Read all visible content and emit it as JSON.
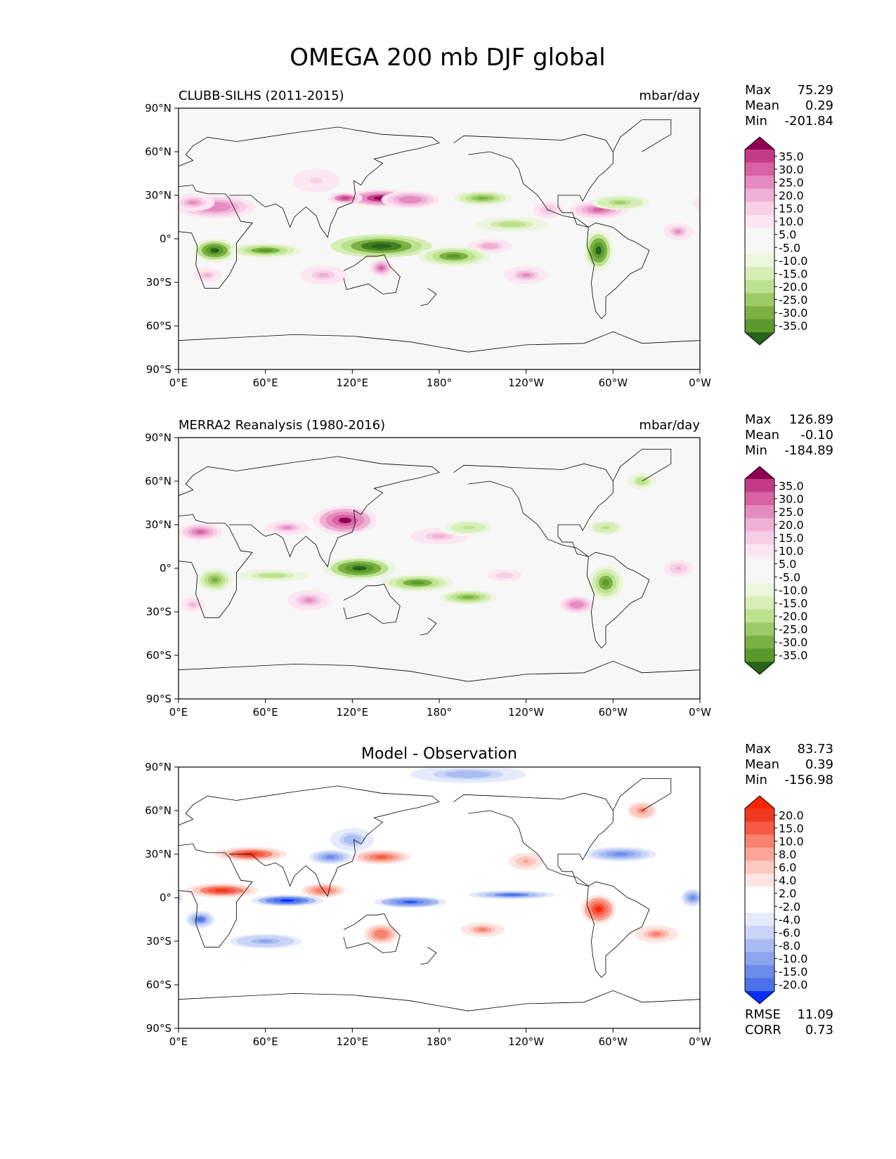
{
  "suptitle": "OMEGA 200 mb DJF global",
  "colors": {
    "piyg": [
      "#276419",
      "#3f7f20",
      "#5a9a2c",
      "#7bb142",
      "#9cca67",
      "#bde28f",
      "#d7eeb6",
      "#ecf5dd",
      "#f7f7f7",
      "#fbe6f1",
      "#f6cfe6",
      "#f0b1d6",
      "#e58bbf",
      "#d962a4",
      "#c23d86",
      "#8e0152"
    ],
    "diff": [
      "#0a2dff",
      "#2c55ef",
      "#4c72ea",
      "#6b8cea",
      "#8ba5ee",
      "#a9bdf2",
      "#c8d5f7",
      "#e5ebfb",
      "#ffffff",
      "#fde6e2",
      "#fbc9bf",
      "#f9a698",
      "#f7816f",
      "#f45a44",
      "#ef3921",
      "#ff2400"
    ]
  },
  "chart_data": [
    {
      "type": "heatmap",
      "panel": "test",
      "left_title": "CLUBB-SILHS (2011-2015)",
      "right_title": "mbar/day",
      "center_title": "",
      "stats": [
        {
          "label": "Max",
          "value": "75.29"
        },
        {
          "label": "Mean",
          "value": "0.29"
        },
        {
          "label": "Min",
          "value": "-201.84"
        }
      ],
      "extra_stats": [],
      "x_ticks": [
        "0°E",
        "60°E",
        "120°E",
        "180°",
        "120°W",
        "60°W",
        "0°W"
      ],
      "y_ticks": [
        "90°N",
        "60°N",
        "30°N",
        "0°",
        "30°S",
        "60°S",
        "90°S"
      ],
      "xlim": [
        0,
        360
      ],
      "ylim": [
        -90,
        90
      ],
      "colormap": "piyg",
      "colorbar_levels": [
        "35.0",
        "30.0",
        "25.0",
        "20.0",
        "15.0",
        "10.0",
        "5.0",
        "-5.0",
        "-10.0",
        "-15.0",
        "-20.0",
        "-25.0",
        "-30.0",
        "-35.0"
      ],
      "features": [
        {
          "lon": 25,
          "lat": 22,
          "v": 0.6,
          "rx": 28,
          "ry": 8
        },
        {
          "lon": 10,
          "lat": 25,
          "v": 0.5,
          "rx": 15,
          "ry": 6
        },
        {
          "lon": 140,
          "lat": 28,
          "v": 1.0,
          "rx": 25,
          "ry": 6
        },
        {
          "lon": 115,
          "lat": 28,
          "v": 0.85,
          "rx": 12,
          "ry": 4
        },
        {
          "lon": 160,
          "lat": 27,
          "v": 0.6,
          "rx": 20,
          "ry": 6
        },
        {
          "lon": 95,
          "lat": 40,
          "v": 0.25,
          "rx": 20,
          "ry": 10
        },
        {
          "lon": 100,
          "lat": -25,
          "v": 0.35,
          "rx": 20,
          "ry": 8
        },
        {
          "lon": 140,
          "lat": -20,
          "v": 0.7,
          "rx": 8,
          "ry": 6
        },
        {
          "lon": 20,
          "lat": -25,
          "v": 0.35,
          "rx": 12,
          "ry": 6
        },
        {
          "lon": 290,
          "lat": 20,
          "v": 0.7,
          "rx": 20,
          "ry": 6
        },
        {
          "lon": 255,
          "lat": 20,
          "v": 0.4,
          "rx": 10,
          "ry": 6
        },
        {
          "lon": 345,
          "lat": 5,
          "v": 0.5,
          "rx": 10,
          "ry": 6
        },
        {
          "lon": 240,
          "lat": -25,
          "v": 0.5,
          "rx": 15,
          "ry": 6
        },
        {
          "lon": 215,
          "lat": -5,
          "v": 0.45,
          "rx": 15,
          "ry": 5
        },
        {
          "lon": 25,
          "lat": -8,
          "v": -0.9,
          "rx": 15,
          "ry": 8
        },
        {
          "lon": 60,
          "lat": -8,
          "v": -0.7,
          "rx": 25,
          "ry": 5
        },
        {
          "lon": 140,
          "lat": -5,
          "v": -1.0,
          "rx": 35,
          "ry": 8
        },
        {
          "lon": 190,
          "lat": -12,
          "v": -0.7,
          "rx": 25,
          "ry": 7
        },
        {
          "lon": 290,
          "lat": -8,
          "v": -0.95,
          "rx": 10,
          "ry": 14
        },
        {
          "lon": 210,
          "lat": 28,
          "v": -0.6,
          "rx": 20,
          "ry": 5
        },
        {
          "lon": 305,
          "lat": 25,
          "v": -0.5,
          "rx": 20,
          "ry": 5
        },
        {
          "lon": 230,
          "lat": 10,
          "v": -0.4,
          "rx": 25,
          "ry": 5
        }
      ]
    },
    {
      "type": "heatmap",
      "panel": "reference",
      "left_title": "MERRA2 Reanalysis (1980-2016)",
      "right_title": "mbar/day",
      "center_title": "",
      "stats": [
        {
          "label": "Max",
          "value": "126.89"
        },
        {
          "label": "Mean",
          "value": "-0.10"
        },
        {
          "label": "Min",
          "value": "-184.89"
        }
      ],
      "extra_stats": [],
      "x_ticks": [
        "0°E",
        "60°E",
        "120°E",
        "180°",
        "120°W",
        "60°W",
        "0°W"
      ],
      "y_ticks": [
        "90°N",
        "60°N",
        "30°N",
        "0°",
        "30°S",
        "60°S",
        "90°S"
      ],
      "xlim": [
        0,
        360
      ],
      "ylim": [
        -90,
        90
      ],
      "colormap": "piyg",
      "colorbar_levels": [
        "35.0",
        "30.0",
        "25.0",
        "20.0",
        "15.0",
        "10.0",
        "5.0",
        "-5.0",
        "-10.0",
        "-15.0",
        "-20.0",
        "-25.0",
        "-30.0",
        "-35.0"
      ],
      "features": [
        {
          "lon": 15,
          "lat": 25,
          "v": 0.7,
          "rx": 15,
          "ry": 6
        },
        {
          "lon": 115,
          "lat": 33,
          "v": 0.9,
          "rx": 22,
          "ry": 10
        },
        {
          "lon": 75,
          "lat": 28,
          "v": 0.5,
          "rx": 15,
          "ry": 5
        },
        {
          "lon": 180,
          "lat": 22,
          "v": 0.35,
          "rx": 25,
          "ry": 7
        },
        {
          "lon": 90,
          "lat": -22,
          "v": 0.5,
          "rx": 15,
          "ry": 7
        },
        {
          "lon": 10,
          "lat": -25,
          "v": 0.35,
          "rx": 10,
          "ry": 6
        },
        {
          "lon": 275,
          "lat": -25,
          "v": 0.6,
          "rx": 12,
          "ry": 6
        },
        {
          "lon": 345,
          "lat": 0,
          "v": 0.4,
          "rx": 10,
          "ry": 6
        },
        {
          "lon": 225,
          "lat": -5,
          "v": 0.3,
          "rx": 15,
          "ry": 5
        },
        {
          "lon": 25,
          "lat": -8,
          "v": -0.6,
          "rx": 12,
          "ry": 8
        },
        {
          "lon": 125,
          "lat": 0,
          "v": -0.9,
          "rx": 25,
          "ry": 8
        },
        {
          "lon": 165,
          "lat": -10,
          "v": -0.7,
          "rx": 25,
          "ry": 6
        },
        {
          "lon": 200,
          "lat": -20,
          "v": -0.6,
          "rx": 20,
          "ry": 5
        },
        {
          "lon": 295,
          "lat": -10,
          "v": -0.7,
          "rx": 12,
          "ry": 12
        },
        {
          "lon": 200,
          "lat": 28,
          "v": -0.35,
          "rx": 20,
          "ry": 6
        },
        {
          "lon": 295,
          "lat": 28,
          "v": -0.35,
          "rx": 15,
          "ry": 6
        },
        {
          "lon": 320,
          "lat": 60,
          "v": -0.4,
          "rx": 10,
          "ry": 6
        },
        {
          "lon": 65,
          "lat": -5,
          "v": -0.4,
          "rx": 25,
          "ry": 4
        }
      ]
    },
    {
      "type": "heatmap",
      "panel": "difference",
      "left_title": "",
      "right_title": "",
      "center_title": "Model - Observation",
      "stats": [
        {
          "label": "Max",
          "value": "83.73"
        },
        {
          "label": "Mean",
          "value": "0.39"
        },
        {
          "label": "Min",
          "value": "-156.98"
        }
      ],
      "extra_stats": [
        {
          "label": "RMSE",
          "value": "11.09"
        },
        {
          "label": "CORR",
          "value": "0.73"
        }
      ],
      "x_ticks": [
        "0°E",
        "60°E",
        "120°E",
        "180°",
        "120°W",
        "60°W",
        "0°W"
      ],
      "y_ticks": [
        "90°N",
        "60°N",
        "30°N",
        "0°",
        "30°S",
        "60°S",
        "90°S"
      ],
      "xlim": [
        0,
        360
      ],
      "ylim": [
        -90,
        90
      ],
      "colormap": "diff",
      "colorbar_levels": [
        "20.0",
        "15.0",
        "10.0",
        "8.0",
        "6.0",
        "4.0",
        "2.0",
        "-2.0",
        "-4.0",
        "-6.0",
        "-8.0",
        "-10.0",
        "-15.0",
        "-20.0"
      ],
      "features": [
        {
          "lon": 50,
          "lat": 30,
          "v": 0.8,
          "rx": 25,
          "ry": 5
        },
        {
          "lon": 140,
          "lat": 28,
          "v": 0.7,
          "rx": 20,
          "ry": 5
        },
        {
          "lon": 30,
          "lat": 5,
          "v": 0.85,
          "rx": 25,
          "ry": 5
        },
        {
          "lon": 290,
          "lat": -8,
          "v": 0.9,
          "rx": 12,
          "ry": 10
        },
        {
          "lon": 330,
          "lat": -25,
          "v": 0.5,
          "rx": 15,
          "ry": 6
        },
        {
          "lon": 140,
          "lat": -25,
          "v": 0.6,
          "rx": 12,
          "ry": 7
        },
        {
          "lon": 210,
          "lat": -22,
          "v": 0.5,
          "rx": 15,
          "ry": 5
        },
        {
          "lon": 320,
          "lat": 60,
          "v": 0.55,
          "rx": 10,
          "ry": 6
        },
        {
          "lon": 240,
          "lat": 25,
          "v": 0.4,
          "rx": 12,
          "ry": 6
        },
        {
          "lon": 100,
          "lat": 5,
          "v": 0.6,
          "rx": 15,
          "ry": 5
        },
        {
          "lon": 75,
          "lat": -2,
          "v": -0.9,
          "rx": 25,
          "ry": 4
        },
        {
          "lon": 160,
          "lat": -3,
          "v": -0.8,
          "rx": 25,
          "ry": 4
        },
        {
          "lon": 230,
          "lat": 2,
          "v": -0.7,
          "rx": 30,
          "ry": 3
        },
        {
          "lon": 105,
          "lat": 28,
          "v": -0.6,
          "rx": 15,
          "ry": 5
        },
        {
          "lon": 15,
          "lat": -15,
          "v": -0.7,
          "rx": 10,
          "ry": 6
        },
        {
          "lon": 305,
          "lat": 30,
          "v": -0.6,
          "rx": 25,
          "ry": 5
        },
        {
          "lon": 200,
          "lat": 85,
          "v": -0.4,
          "rx": 40,
          "ry": 6
        },
        {
          "lon": 120,
          "lat": 40,
          "v": -0.4,
          "rx": 15,
          "ry": 8
        },
        {
          "lon": 60,
          "lat": -30,
          "v": -0.5,
          "rx": 25,
          "ry": 5
        },
        {
          "lon": 355,
          "lat": 0,
          "v": -0.6,
          "rx": 8,
          "ry": 6
        }
      ]
    }
  ]
}
